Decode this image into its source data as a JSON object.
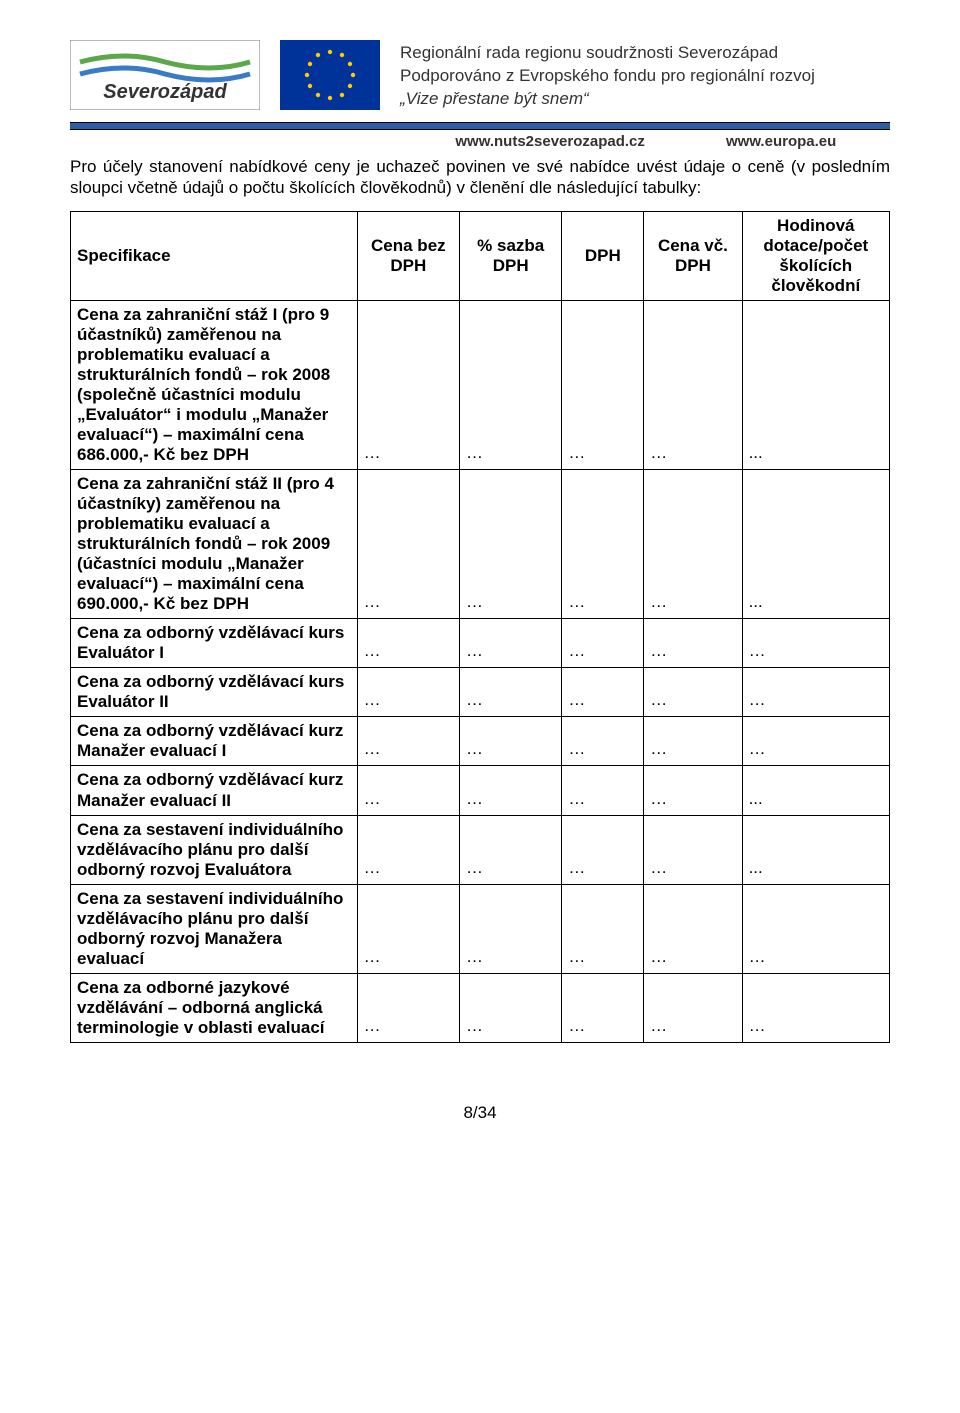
{
  "header": {
    "line1": "Regionální rada regionu soudržnosti Severozápad",
    "line2": "Podporováno z Evropského fondu pro regionální rozvoj",
    "line3": "„Vize přestane být snem“",
    "url1": "www.nuts2severozapad.cz",
    "url2": "www.europa.eu",
    "logo_sz_alt": "Severozápad",
    "logo_eu_alt": "EU flag"
  },
  "intro": "Pro účely stanovení nabídkové ceny je uchazeč povinen ve své nabídce uvést údaje o ceně (v posledním sloupci včetně údajů o počtu školících člověkodnů) v členění dle následující tabulky:",
  "table": {
    "columns": [
      "Specifikace",
      "Cena bez DPH",
      "% sazba DPH",
      "DPH",
      "Cena vč. DPH",
      "Hodinová dotace/počet školících člověkodní"
    ],
    "rows": [
      {
        "label": "Cena za zahraniční stáž I (pro 9 účastníků) zaměřenou na problematiku evaluací a strukturálních fondů – rok 2008 (společně účastníci modulu „Evaluátor“ i modulu „Manažer evaluací“) – maximální cena 686.000,- Kč bez DPH",
        "c1": "…",
        "c2": "…",
        "c3": "…",
        "c4": "…",
        "c5": "..."
      },
      {
        "label": "Cena za zahraniční stáž II (pro 4 účastníky) zaměřenou na problematiku evaluací a strukturálních fondů – rok 2009 (účastníci modulu „Manažer evaluací“) – maximální cena 690.000,- Kč bez DPH",
        "c1": "…",
        "c2": "…",
        "c3": "…",
        "c4": "…",
        "c5": "..."
      },
      {
        "label": "Cena za odborný vzdělávací kurs Evaluátor I",
        "c1": "…",
        "c2": "…",
        "c3": "…",
        "c4": "…",
        "c5": "…"
      },
      {
        "label": "Cena za odborný vzdělávací kurs Evaluátor II",
        "c1": "…",
        "c2": "…",
        "c3": "…",
        "c4": "…",
        "c5": "…"
      },
      {
        "label": "Cena za odborný vzdělávací kurz Manažer evaluací I",
        "c1": "…",
        "c2": "…",
        "c3": "…",
        "c4": "…",
        "c5": "…"
      },
      {
        "label": "Cena za odborný vzdělávací kurz Manažer evaluací II",
        "c1": "…",
        "c2": "…",
        "c3": "…",
        "c4": "…",
        "c5": "..."
      },
      {
        "label": "Cena za sestavení individuálního vzdělávacího plánu pro další odborný rozvoj Evaluátora",
        "c1": "…",
        "c2": "…",
        "c3": "…",
        "c4": "…",
        "c5": "..."
      },
      {
        "label": "Cena za sestavení individuálního vzdělávacího plánu pro další odborný rozvoj Manažera evaluací",
        "c1": "…",
        "c2": "…",
        "c3": "…",
        "c4": "…",
        "c5": "…"
      },
      {
        "label": "Cena za odborné jazykové vzdělávání – odborná anglická terminologie v oblasti evaluací",
        "c1": "…",
        "c2": "…",
        "c3": "…",
        "c4": "…",
        "c5": "…"
      }
    ]
  },
  "footer": "8/34",
  "colors": {
    "hr_blue": "#2f5ea8",
    "eu_blue": "#003399",
    "eu_gold": "#ffcc00",
    "sz_green": "#5aa84a",
    "sz_blue": "#3a7bc8"
  }
}
